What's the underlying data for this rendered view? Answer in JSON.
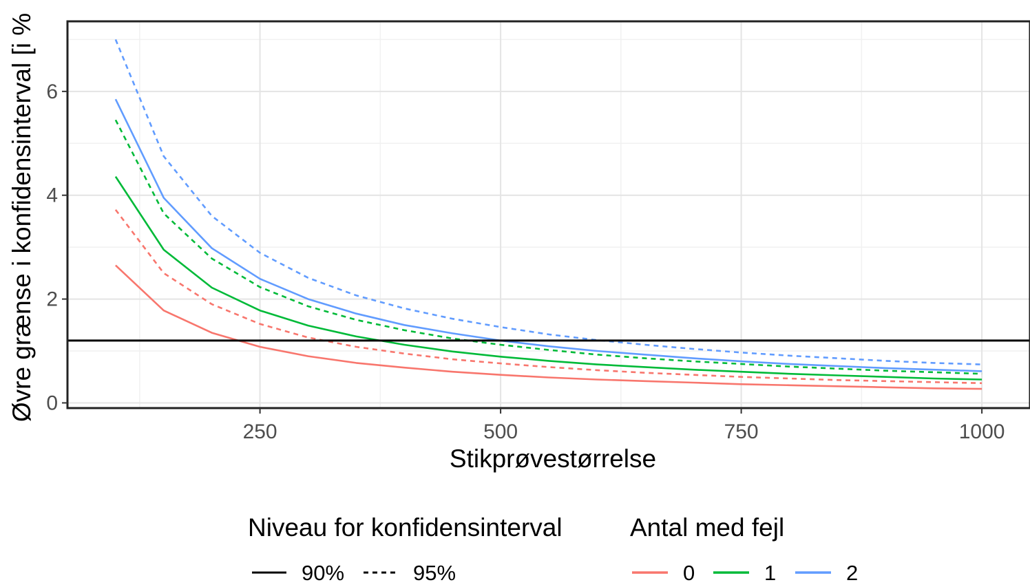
{
  "chart_data": {
    "type": "line",
    "title": "",
    "xlabel": "Stikprøvestørrelse",
    "ylabel": "Øvre grænse i konfidensinterval [i %",
    "xlim": [
      50,
      1050
    ],
    "ylim": [
      -0.1,
      7.35
    ],
    "x_ticks": [
      250,
      500,
      750,
      1000
    ],
    "x_tick_labels": [
      "250",
      "500",
      "750",
      "1000"
    ],
    "y_ticks": [
      0,
      2,
      4,
      6
    ],
    "y_tick_labels": [
      "0",
      "2",
      "4",
      "6"
    ],
    "grid": true,
    "x": [
      100,
      150,
      200,
      250,
      300,
      350,
      400,
      450,
      500,
      550,
      600,
      650,
      700,
      750,
      800,
      850,
      900,
      950,
      1000
    ],
    "series": [
      {
        "errors": "0",
        "level": "90%",
        "color": "#F8766D",
        "dash": "solid",
        "values": [
          2.65,
          1.78,
          1.35,
          1.08,
          0.9,
          0.77,
          0.68,
          0.6,
          0.54,
          0.49,
          0.45,
          0.42,
          0.39,
          0.36,
          0.34,
          0.32,
          0.3,
          0.28,
          0.27
        ]
      },
      {
        "errors": "0",
        "level": "95%",
        "color": "#F8766D",
        "dash": "dashed",
        "values": [
          3.72,
          2.5,
          1.9,
          1.52,
          1.26,
          1.08,
          0.95,
          0.84,
          0.76,
          0.69,
          0.63,
          0.58,
          0.54,
          0.5,
          0.47,
          0.44,
          0.42,
          0.4,
          0.38
        ]
      },
      {
        "errors": "1",
        "level": "90%",
        "color": "#00BA38",
        "dash": "solid",
        "values": [
          4.36,
          2.95,
          2.22,
          1.78,
          1.49,
          1.28,
          1.12,
          0.99,
          0.89,
          0.81,
          0.74,
          0.69,
          0.64,
          0.6,
          0.56,
          0.53,
          0.5,
          0.47,
          0.45
        ]
      },
      {
        "errors": "1",
        "level": "95%",
        "color": "#00BA38",
        "dash": "dashed",
        "values": [
          5.45,
          3.65,
          2.78,
          2.23,
          1.86,
          1.6,
          1.4,
          1.24,
          1.12,
          1.02,
          0.93,
          0.86,
          0.8,
          0.75,
          0.7,
          0.66,
          0.62,
          0.59,
          0.56
        ]
      },
      {
        "errors": "2",
        "level": "90%",
        "color": "#619CFF",
        "dash": "solid",
        "values": [
          5.85,
          3.95,
          2.98,
          2.39,
          2.0,
          1.72,
          1.5,
          1.34,
          1.2,
          1.09,
          1.0,
          0.93,
          0.86,
          0.8,
          0.75,
          0.71,
          0.67,
          0.64,
          0.61
        ]
      },
      {
        "errors": "2",
        "level": "95%",
        "color": "#619CFF",
        "dash": "dashed",
        "values": [
          7.0,
          4.75,
          3.6,
          2.89,
          2.41,
          2.07,
          1.82,
          1.62,
          1.46,
          1.32,
          1.21,
          1.12,
          1.04,
          0.97,
          0.91,
          0.86,
          0.81,
          0.77,
          0.74
        ]
      }
    ],
    "reference_line": {
      "y": 1.2,
      "color": "#000000"
    },
    "legend": {
      "placement": "bottom",
      "level_title": "Niveau for konfidensinterval",
      "level_items": [
        {
          "label": "90%",
          "dash": "solid"
        },
        {
          "label": "95%",
          "dash": "dashed"
        }
      ],
      "errors_title": "Antal med fejl",
      "errors_items": [
        {
          "label": "0",
          "color": "#F8766D"
        },
        {
          "label": "1",
          "color": "#00BA38"
        },
        {
          "label": "2",
          "color": "#619CFF"
        }
      ]
    }
  }
}
